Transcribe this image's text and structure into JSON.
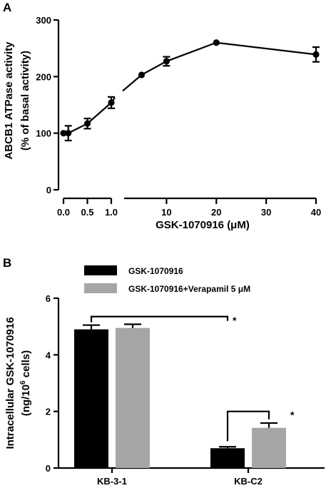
{
  "chart_data": [
    {
      "panel": "A",
      "type": "line",
      "xlabel": "GSK-1070916 (μM)",
      "ylabel_lines": [
        "ABCB1 ATPase activity",
        "(% of basal activity)"
      ],
      "ylim": [
        0,
        300
      ],
      "yticks": [
        "0",
        "100",
        "200",
        "300"
      ],
      "x_segments": [
        {
          "range": [
            0,
            1
          ],
          "ticks": [
            "0.0",
            "0.5",
            "1.0"
          ],
          "tick_values": [
            0,
            0.5,
            1
          ]
        },
        {
          "range": [
            1.5,
            40
          ],
          "ticks": [
            "10",
            "20",
            "30",
            "40"
          ],
          "tick_values": [
            10,
            20,
            30,
            40
          ]
        }
      ],
      "points": [
        {
          "x": 0,
          "y": 100,
          "err": 0
        },
        {
          "x": 0.1,
          "y": 100,
          "err": 13
        },
        {
          "x": 0.5,
          "y": 117,
          "err": 9
        },
        {
          "x": 1,
          "y": 154,
          "err": 10
        },
        {
          "x": 5,
          "y": 203,
          "err": 0
        },
        {
          "x": 10,
          "y": 227,
          "err": 8
        },
        {
          "x": 20,
          "y": 260,
          "err": 0
        },
        {
          "x": 40,
          "y": 239,
          "err": 13
        }
      ]
    },
    {
      "panel": "B",
      "type": "bar",
      "ylabel_lines": [
        "Intracellular GSK-1070916",
        "(ng/10",
        "6",
        " cells)"
      ],
      "ylim": [
        0,
        6
      ],
      "yticks": [
        "0",
        "2",
        "4",
        "6"
      ],
      "categories": [
        "KB-3-1",
        "KB-C2"
      ],
      "series": [
        {
          "name": "GSK-1070916",
          "color": "#000000",
          "values": [
            4.9,
            0.7
          ],
          "err": [
            0.15,
            0.05
          ]
        },
        {
          "name": "GSK-1070916+Verapamil 5 μM",
          "color": "#a6a6a6",
          "values": [
            4.95,
            1.42
          ],
          "err": [
            0.13,
            0.17
          ]
        }
      ],
      "annotations": [
        "*",
        "*"
      ]
    }
  ]
}
